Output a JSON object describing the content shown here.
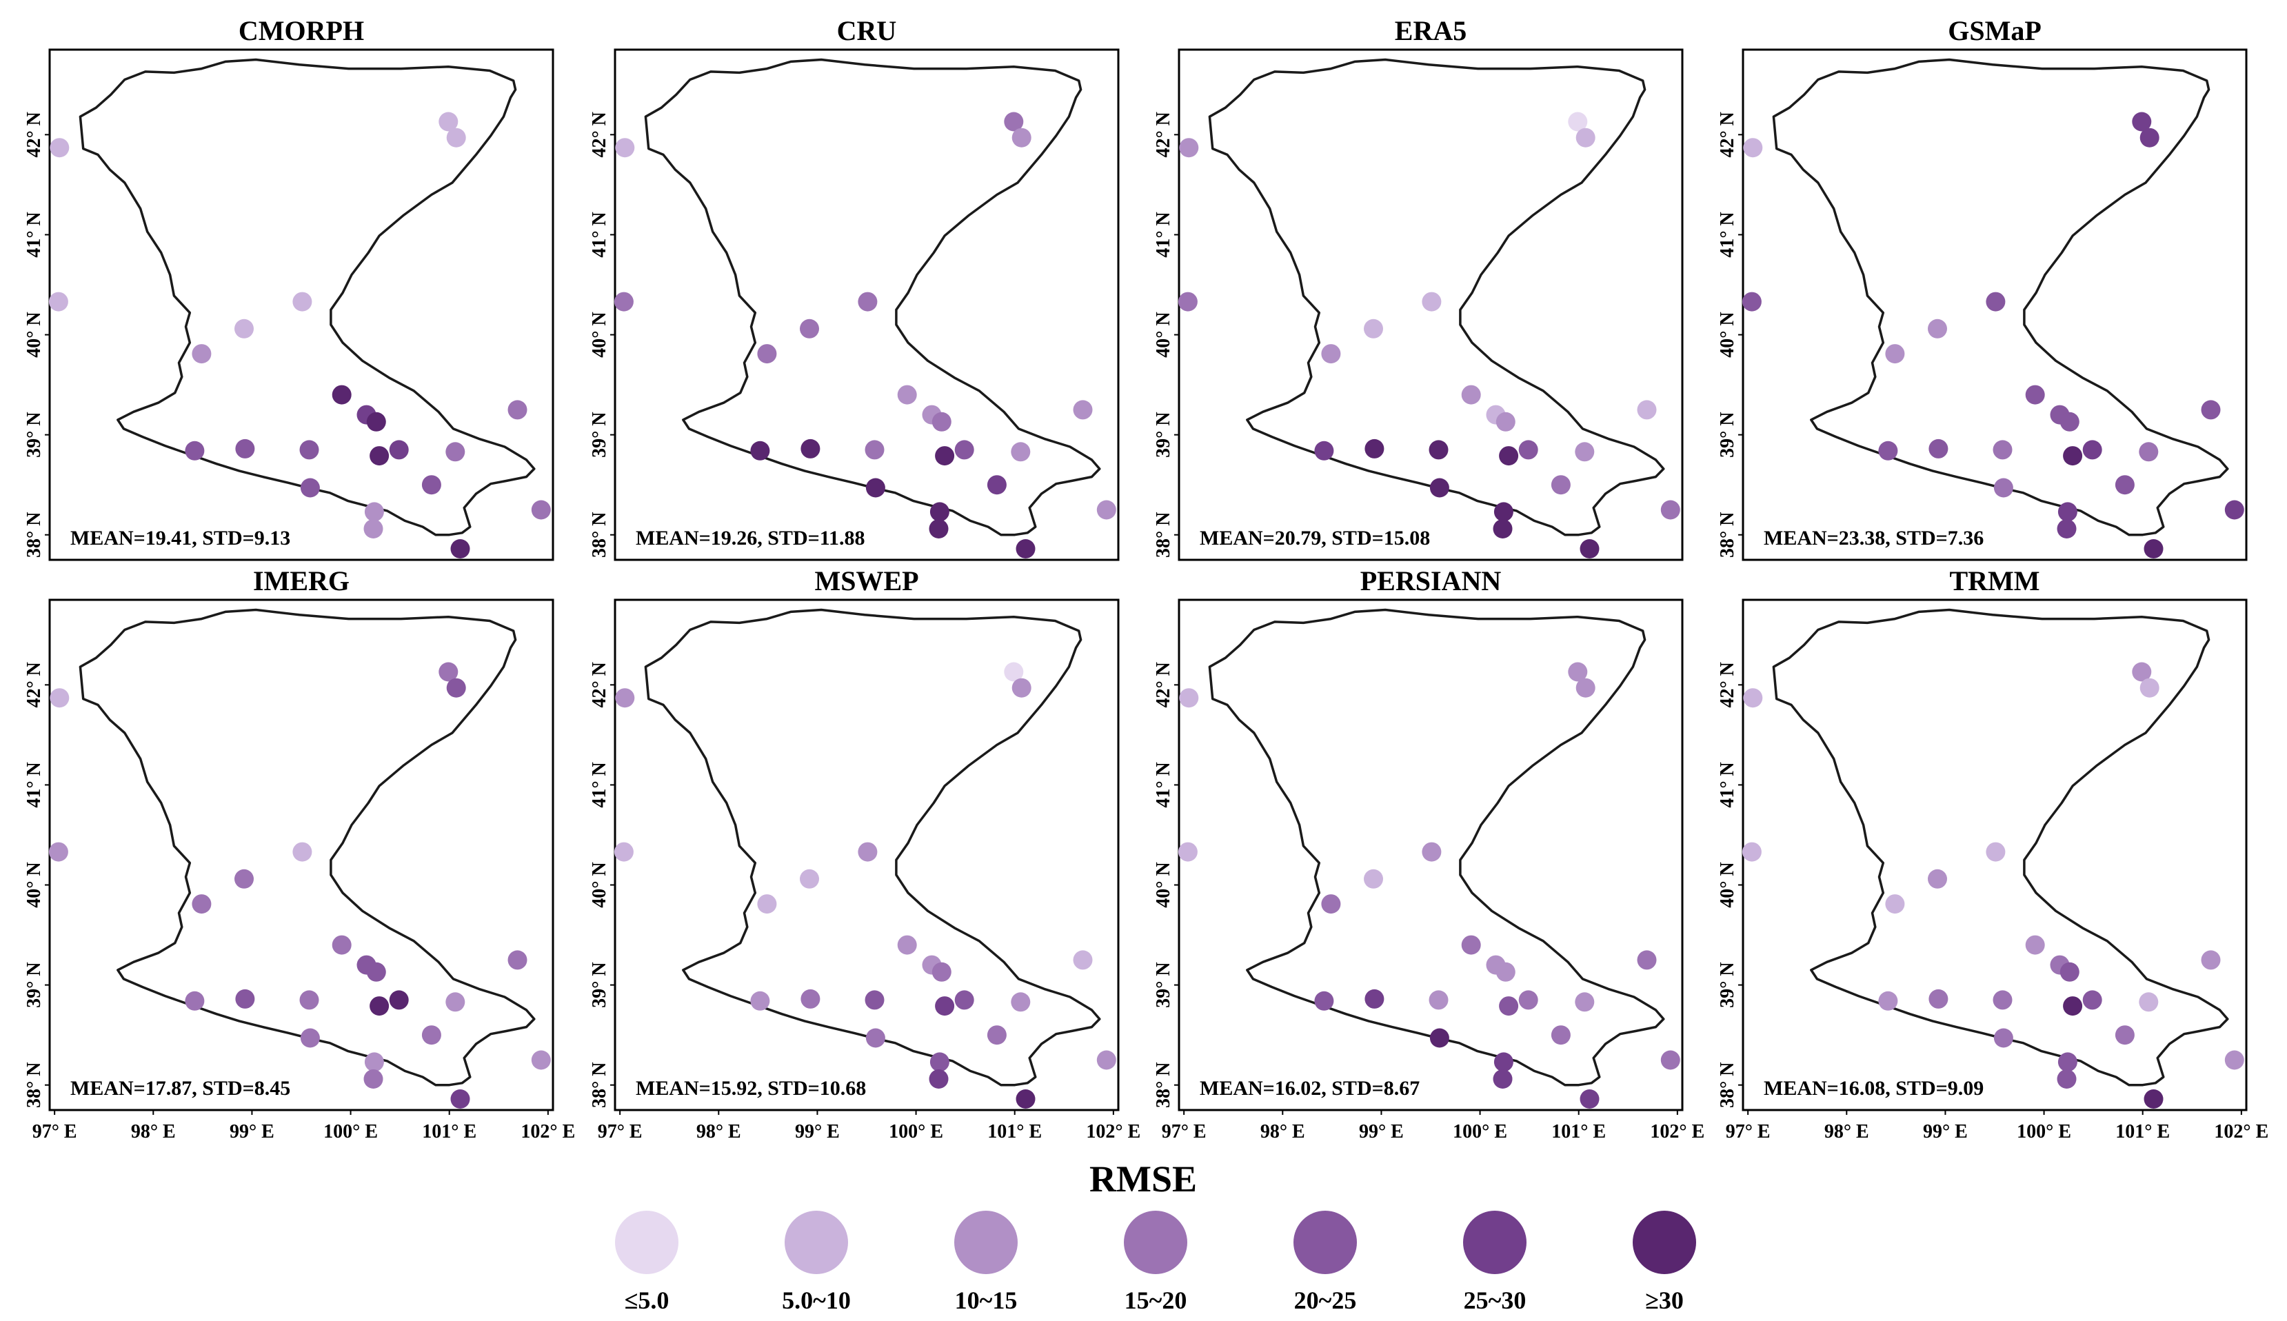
{
  "figure": {
    "colors": {
      "frame": "#000000",
      "boundary": "#1a1a1a",
      "background": "#ffffff"
    },
    "x_ticks": [
      "97° E",
      "98° E",
      "99° E",
      "100° E",
      "101° E",
      "102° E"
    ],
    "y_ticks": [
      "38° N",
      "39° N",
      "40° N",
      "41° N",
      "42° N"
    ],
    "region_boundary_lonlat": [
      [
        97.44,
        41.8
      ],
      [
        97.29,
        41.86
      ],
      [
        97.26,
        42.18
      ],
      [
        97.42,
        42.27
      ],
      [
        97.57,
        42.4
      ],
      [
        97.71,
        42.55
      ],
      [
        97.92,
        42.63
      ],
      [
        98.21,
        42.62
      ],
      [
        98.49,
        42.66
      ],
      [
        98.73,
        42.73
      ],
      [
        99.04,
        42.75
      ],
      [
        99.48,
        42.7
      ],
      [
        99.98,
        42.66
      ],
      [
        100.51,
        42.66
      ],
      [
        100.99,
        42.68
      ],
      [
        101.41,
        42.64
      ],
      [
        101.65,
        42.54
      ],
      [
        101.67,
        42.45
      ],
      [
        101.62,
        42.37
      ],
      [
        101.55,
        42.18
      ],
      [
        101.42,
        41.99
      ],
      [
        101.27,
        41.8
      ],
      [
        101.03,
        41.52
      ],
      [
        100.82,
        41.4
      ],
      [
        100.53,
        41.19
      ],
      [
        100.29,
        40.99
      ],
      [
        100.18,
        40.82
      ],
      [
        100.01,
        40.6
      ],
      [
        99.92,
        40.42
      ],
      [
        99.8,
        40.25
      ],
      [
        99.8,
        40.1
      ],
      [
        99.92,
        39.92
      ],
      [
        100.12,
        39.74
      ],
      [
        100.39,
        39.57
      ],
      [
        100.64,
        39.44
      ],
      [
        100.89,
        39.23
      ],
      [
        101.04,
        39.06
      ],
      [
        101.3,
        38.96
      ],
      [
        101.56,
        38.88
      ],
      [
        101.78,
        38.75
      ],
      [
        101.86,
        38.66
      ],
      [
        101.78,
        38.58
      ],
      [
        101.58,
        38.54
      ],
      [
        101.42,
        38.51
      ],
      [
        101.27,
        38.41
      ],
      [
        101.15,
        38.27
      ],
      [
        101.21,
        38.08
      ],
      [
        101.13,
        38.02
      ],
      [
        101.0,
        38.0
      ],
      [
        100.86,
        38.0
      ],
      [
        100.73,
        38.08
      ],
      [
        100.55,
        38.14
      ],
      [
        100.37,
        38.24
      ],
      [
        100.16,
        38.29
      ],
      [
        99.97,
        38.34
      ],
      [
        99.79,
        38.42
      ],
      [
        99.61,
        38.46
      ],
      [
        99.37,
        38.52
      ],
      [
        99.11,
        38.58
      ],
      [
        98.87,
        38.64
      ],
      [
        98.64,
        38.71
      ],
      [
        98.38,
        38.8
      ],
      [
        98.12,
        38.89
      ],
      [
        97.89,
        38.98
      ],
      [
        97.7,
        39.06
      ],
      [
        97.64,
        39.15
      ],
      [
        97.8,
        39.23
      ],
      [
        98.05,
        39.32
      ],
      [
        98.22,
        39.42
      ],
      [
        98.29,
        39.58
      ],
      [
        98.26,
        39.72
      ],
      [
        98.37,
        39.92
      ],
      [
        98.33,
        40.08
      ],
      [
        98.37,
        40.22
      ],
      [
        98.21,
        40.39
      ],
      [
        98.17,
        40.6
      ],
      [
        98.08,
        40.82
      ],
      [
        97.94,
        41.03
      ],
      [
        97.87,
        41.26
      ],
      [
        97.71,
        41.52
      ],
      [
        97.56,
        41.65
      ],
      [
        97.44,
        41.8
      ]
    ],
    "legend": {
      "title": "RMSE",
      "classes": [
        {
          "label": "≤5.0",
          "color": "#e6d9f0"
        },
        {
          "label": "5.0~10",
          "color": "#cab3dc"
        },
        {
          "label": "10~15",
          "color": "#b190c6"
        },
        {
          "label": "15~20",
          "color": "#9c73b3"
        },
        {
          "label": "20~25",
          "color": "#86579f"
        },
        {
          "label": "25~30",
          "color": "#723f8c"
        },
        {
          "label": "≥30",
          "color": "#59266f"
        }
      ]
    }
  },
  "chart_data": {
    "type": "scatter",
    "title": "",
    "xlabel": "",
    "ylabel": "",
    "xlim": [
      96.95,
      102.05
    ],
    "ylim": [
      37.75,
      42.85
    ],
    "value_name": "RMSE",
    "stations": [
      {
        "id": "S01",
        "lon": 97.05,
        "lat": 41.87
      },
      {
        "id": "S02",
        "lon": 100.99,
        "lat": 42.13
      },
      {
        "id": "S03",
        "lon": 101.07,
        "lat": 41.97
      },
      {
        "id": "S04",
        "lon": 97.04,
        "lat": 40.33
      },
      {
        "id": "S05",
        "lon": 99.51,
        "lat": 40.33
      },
      {
        "id": "S06",
        "lon": 98.92,
        "lat": 40.06
      },
      {
        "id": "S07",
        "lon": 98.49,
        "lat": 39.81
      },
      {
        "id": "S08",
        "lon": 99.91,
        "lat": 39.4
      },
      {
        "id": "S09",
        "lon": 100.16,
        "lat": 39.2
      },
      {
        "id": "S10",
        "lon": 100.26,
        "lat": 39.13
      },
      {
        "id": "S11",
        "lon": 101.69,
        "lat": 39.25
      },
      {
        "id": "S12",
        "lon": 98.42,
        "lat": 38.84
      },
      {
        "id": "S13",
        "lon": 98.93,
        "lat": 38.86
      },
      {
        "id": "S14",
        "lon": 99.58,
        "lat": 38.85
      },
      {
        "id": "S15",
        "lon": 100.49,
        "lat": 38.85
      },
      {
        "id": "S16",
        "lon": 100.29,
        "lat": 38.79
      },
      {
        "id": "S17",
        "lon": 101.06,
        "lat": 38.83
      },
      {
        "id": "S18",
        "lon": 99.59,
        "lat": 38.47
      },
      {
        "id": "S19",
        "lon": 100.82,
        "lat": 38.5
      },
      {
        "id": "S20",
        "lon": 100.24,
        "lat": 38.23
      },
      {
        "id": "S21",
        "lon": 100.23,
        "lat": 38.06
      },
      {
        "id": "S22",
        "lon": 101.11,
        "lat": 37.86
      },
      {
        "id": "S23",
        "lon": 101.93,
        "lat": 38.25
      }
    ],
    "panels": [
      {
        "name": "CMORPH",
        "stat": "MEAN=19.41, STD=9.13",
        "classes": [
          1,
          1,
          1,
          1,
          1,
          1,
          2,
          6,
          5,
          6,
          3,
          4,
          4,
          4,
          5,
          6,
          3,
          4,
          4,
          2,
          2,
          6,
          3
        ]
      },
      {
        "name": "CRU",
        "stat": "MEAN=19.26, STD=11.88",
        "classes": [
          1,
          3,
          2,
          3,
          3,
          3,
          3,
          2,
          2,
          3,
          2,
          6,
          6,
          3,
          4,
          6,
          2,
          6,
          5,
          6,
          6,
          6,
          2
        ]
      },
      {
        "name": "ERA5",
        "stat": "MEAN=20.79, STD=15.08",
        "classes": [
          2,
          0,
          1,
          3,
          1,
          1,
          2,
          2,
          1,
          2,
          1,
          5,
          6,
          6,
          4,
          6,
          2,
          6,
          3,
          6,
          6,
          6,
          3
        ]
      },
      {
        "name": "GSMaP",
        "stat": "MEAN=23.38, STD=7.36",
        "classes": [
          1,
          5,
          5,
          4,
          4,
          2,
          2,
          4,
          4,
          4,
          4,
          4,
          4,
          3,
          5,
          6,
          3,
          3,
          4,
          5,
          5,
          6,
          5
        ]
      },
      {
        "name": "IMERG",
        "stat": "MEAN=17.87, STD=8.45",
        "classes": [
          1,
          3,
          4,
          2,
          1,
          3,
          3,
          3,
          4,
          4,
          3,
          3,
          4,
          3,
          6,
          6,
          2,
          3,
          3,
          2,
          3,
          5,
          2
        ]
      },
      {
        "name": "MSWEP",
        "stat": "MEAN=15.92, STD=10.68",
        "classes": [
          2,
          0,
          2,
          1,
          2,
          1,
          1,
          2,
          2,
          3,
          1,
          2,
          3,
          4,
          4,
          5,
          2,
          3,
          3,
          4,
          5,
          6,
          2
        ]
      },
      {
        "name": "PERSIANN",
        "stat": "MEAN=16.02, STD=8.67",
        "classes": [
          1,
          2,
          2,
          1,
          2,
          1,
          3,
          3,
          2,
          2,
          3,
          4,
          5,
          2,
          3,
          4,
          2,
          6,
          3,
          5,
          5,
          5,
          3
        ]
      },
      {
        "name": "TRMM",
        "stat": "MEAN=16.08, STD=9.09",
        "classes": [
          1,
          2,
          1,
          1,
          1,
          2,
          1,
          2,
          3,
          4,
          2,
          2,
          3,
          3,
          4,
          6,
          1,
          3,
          3,
          4,
          4,
          6,
          2
        ]
      }
    ]
  }
}
